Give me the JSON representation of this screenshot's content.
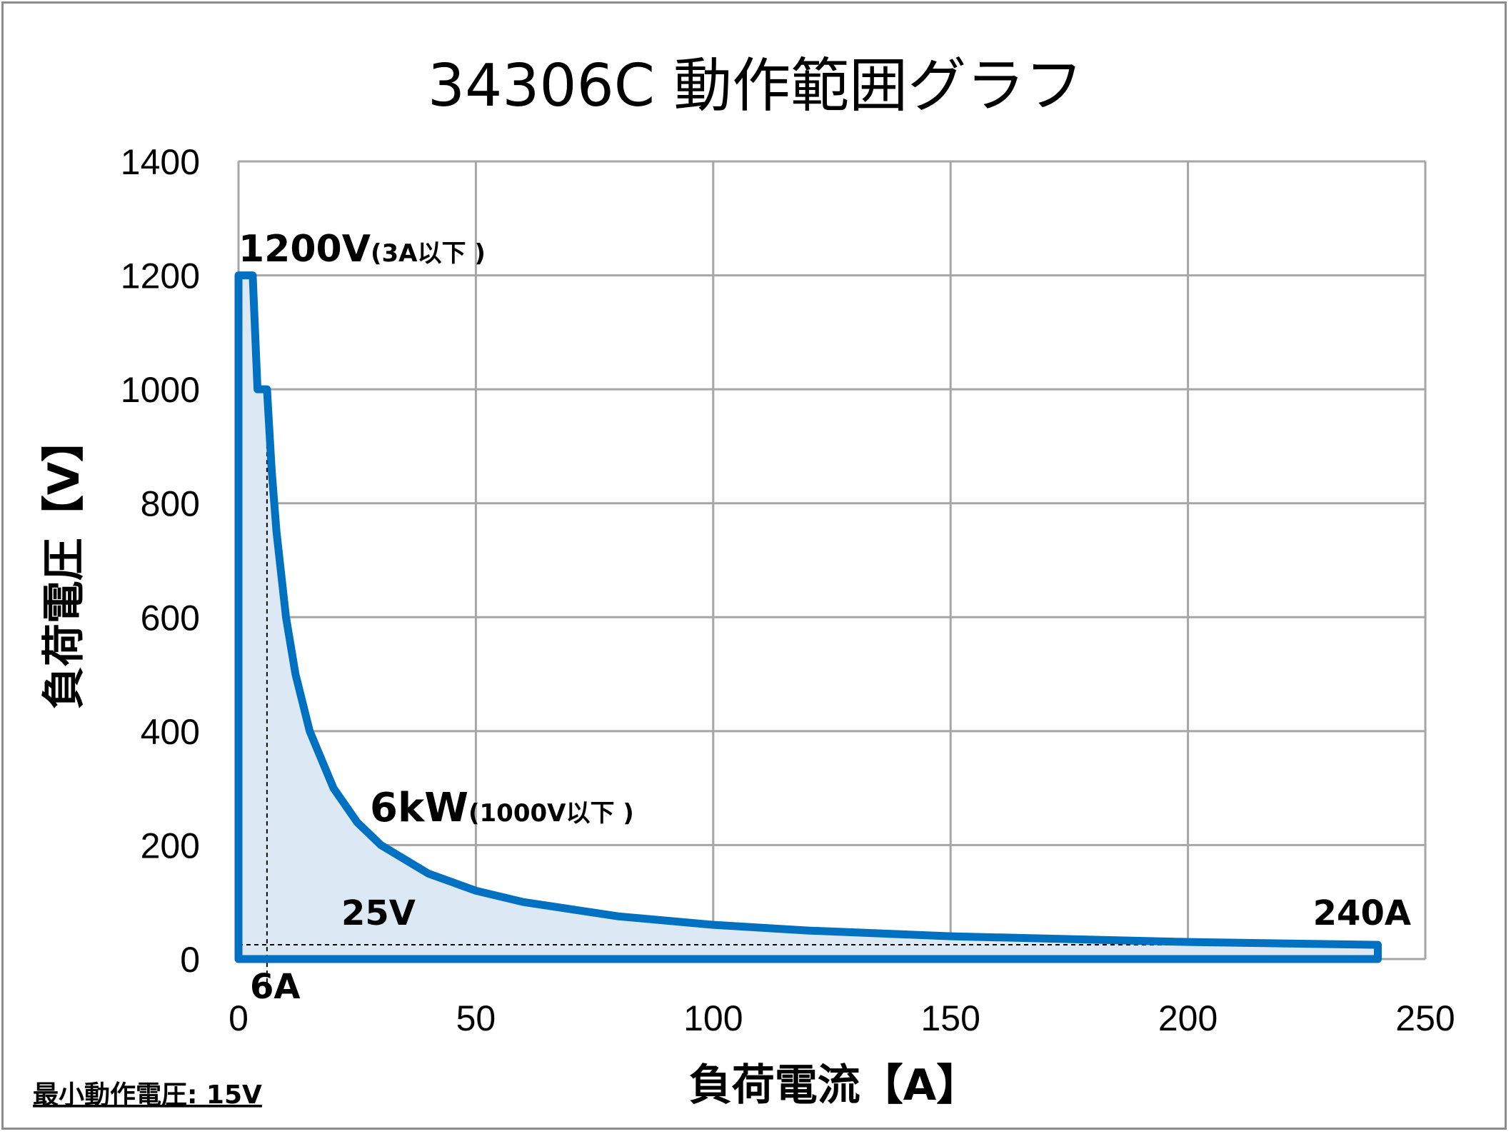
{
  "chart_data": {
    "type": "area",
    "title": "34306C  動作範囲グラフ",
    "xlabel": "負荷電流【A】",
    "ylabel": "負荷電圧【V】",
    "xlim": [
      0,
      250
    ],
    "ylim": [
      0,
      1400
    ],
    "xticks": [
      "0",
      "50",
      "100",
      "150",
      "200",
      "250"
    ],
    "yticks": [
      "0",
      "200",
      "400",
      "600",
      "800",
      "1000",
      "1200",
      "1400"
    ],
    "grid": true,
    "colors": {
      "boundary": "#0070c0",
      "fill": "#dce9f5",
      "grid": "#a6a6a6"
    },
    "series": [
      {
        "x": [
          0,
          3,
          3,
          4,
          5,
          6,
          7,
          8,
          10,
          12,
          15,
          20,
          25,
          30,
          40,
          50,
          60,
          80,
          100,
          120,
          150,
          200,
          240,
          240,
          0
        ],
        "y": [
          1200,
          1200,
          1200,
          1000,
          1000,
          1000,
          857,
          750,
          600,
          500,
          400,
          300,
          240,
          200,
          150,
          120,
          100,
          75,
          60,
          50,
          40,
          30,
          25,
          0,
          0
        ]
      }
    ],
    "guides": [
      {
        "axis": "x",
        "value": 6
      },
      {
        "axis": "y",
        "value": 25
      }
    ],
    "annotations": {
      "vmax_main": "1200V",
      "vmax_sub": "(3A以下 )",
      "power_main": "6kW",
      "power_sub": "(1000V以下 )",
      "min_voltage": "25V",
      "min_current": "6A",
      "max_current": "240A"
    },
    "footnote": "最小動作電圧: 15V"
  }
}
